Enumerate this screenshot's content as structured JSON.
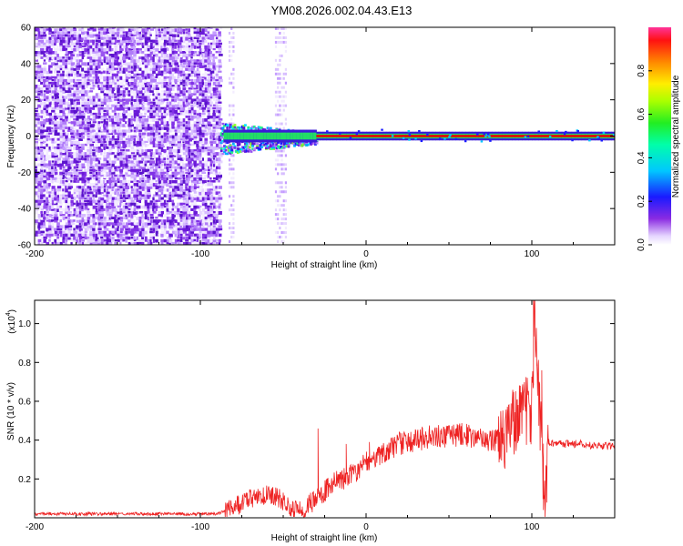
{
  "title": "YM08.2026.002.04.43.E13",
  "colors": {
    "snr_line": "#ee2222",
    "carrier": "#dd1100"
  },
  "chart_data": [
    {
      "type": "heatmap",
      "xlabel": "Height of straight line (km)",
      "ylabel": "Frequency (Hz)",
      "xlim": [
        -200,
        150
      ],
      "ylim": [
        -60,
        60
      ],
      "xticks": [
        -200,
        -100,
        0,
        100
      ],
      "yticks": [
        60,
        40,
        20,
        0,
        -20,
        -40,
        -60
      ],
      "xtick_labels": [
        "-200",
        "-100",
        "0",
        "100"
      ],
      "ytick_labels": [
        "60",
        "40",
        "20",
        "0",
        "-20",
        "-40",
        "-60"
      ],
      "colorbar": {
        "label": "Normalized spectral amplitude",
        "range": [
          0,
          1
        ],
        "ticks": [
          0,
          0.2,
          0.4,
          0.6,
          0.8
        ],
        "tick_labels": [
          "0.0",
          "0.2",
          "0.4",
          "0.6",
          "0.8"
        ]
      },
      "carrier_frequency_hz": 0,
      "noise_region_km": [
        -200,
        -88
      ],
      "noise_stripe_km": [
        -55,
        -48
      ],
      "transition_region_km": [
        -88,
        -30
      ],
      "strong_carrier_from_km": -30
    },
    {
      "type": "line",
      "title": "",
      "xlabel": "Height of straight line (km)",
      "ylabel": "SNR (10 * v/v)",
      "scale_label": "(x10",
      "scale_exponent": "4",
      "scale_close": ")",
      "xlim": [
        -200,
        150
      ],
      "ylim": [
        0,
        1.12
      ],
      "xticks": [
        -200,
        -100,
        0,
        100
      ],
      "yticks": [
        0.2,
        0.4,
        0.6,
        0.8,
        1.0
      ],
      "xtick_labels": [
        "-200",
        "-100",
        "0",
        "100"
      ],
      "ytick_labels": [
        "0.2",
        "0.4",
        "0.6",
        "0.8",
        "1.0"
      ],
      "series": [
        {
          "name": "SNR",
          "x": [
            -200,
            -160,
            -120,
            -90,
            -80,
            -70,
            -60,
            -52,
            -45,
            -38,
            -30,
            -20,
            -10,
            0,
            10,
            20,
            30,
            40,
            50,
            60,
            70,
            80,
            85,
            90,
            95,
            100,
            102,
            105,
            108,
            110,
            120,
            130,
            140,
            150
          ],
          "y": [
            0.02,
            0.02,
            0.02,
            0.02,
            0.05,
            0.1,
            0.12,
            0.1,
            0.05,
            0.03,
            0.1,
            0.18,
            0.22,
            0.28,
            0.33,
            0.38,
            0.4,
            0.42,
            0.42,
            0.43,
            0.4,
            0.4,
            0.44,
            0.5,
            0.55,
            0.55,
            1.05,
            0.5,
            0.1,
            0.39,
            0.38,
            0.38,
            0.37,
            0.37
          ]
        }
      ],
      "spikes": [
        {
          "x": -29,
          "y": 0.46
        },
        {
          "x": -12,
          "y": 0.38
        },
        {
          "x": 2,
          "y": 0.39
        },
        {
          "x": 20,
          "y": 0.44
        },
        {
          "x": 86,
          "y": 0.58
        },
        {
          "x": 95,
          "y": 0.64
        },
        {
          "x": 101,
          "y": 1.12
        },
        {
          "x": 103,
          "y": 0.8
        },
        {
          "x": 106,
          "y": 0.76
        },
        {
          "x": 107,
          "y": 0.04
        }
      ]
    }
  ]
}
